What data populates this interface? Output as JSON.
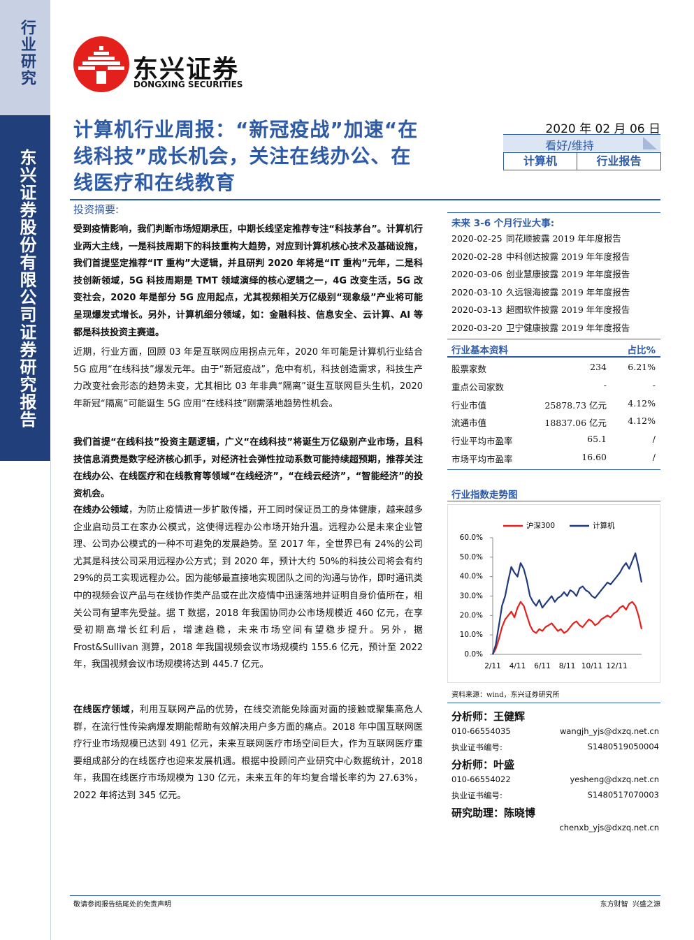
{
  "sidebar": {
    "category": "行业研究",
    "company": "东兴证券股份有限公司证券研究报告"
  },
  "header": {
    "logo_name": "东兴证券",
    "logo_english": "DONGXING SECURITIES",
    "title": "计算机行业周报：“新冠疫战”加速“在线科技”成长机会，关注在线办公、在线医疗和在线教育",
    "date": "2020 年 02 月 06 日",
    "rating": "看好/维持",
    "industry": "计算机",
    "report_type": "行业报告"
  },
  "summary": {
    "heading": "投资摘要:",
    "paragraphs": [
      {
        "bold": true,
        "text": "受到疫情影响，我们判断市场短期承压，中期长线坚定推荐专注“科技茅台”。计算机行业两大主线，一是科技周期下的科技重构大趋势，对应到计算机核心技术及基础设施，我们首提坚定推荐“IT 重构”大逻辑，并且研判 2020 年将是“IT 重构”元年，二是科技创新领域，5G 科技周期是 TMT 领域演绎的核心逻辑之一，4G 改变生活，5G 改变社会，2020 年是部分 5G 应用起点，尤其视频相关万亿级别“现象级”产业将可能呈现爆发式增长。另外，计算机细分领域，如：金融科技、信息安全、云计算、AI 等都是科技投资主赛道。"
      },
      {
        "bold": false,
        "text": "近期，行业方面，回顾 03 年是互联网应用拐点元年，2020 年可能是计算机行业结合 5G 应用“在线科技”爆发元年。由于“新冠疫战”，危中有机，科技创造需求，科技生产力改变社会形态的趋势未变，尤其相比 03 年非典“隔离”诞生互联网巨头生机，2020 年新冠“隔离”可能诞生 5G 应用“在线科技”刚需落地趋势性机会。"
      },
      {
        "bold": true,
        "text": "我们首提“在线科技”投资主题逻辑，广义“在线科技”将诞生万亿级别产业市场，且科技信息消费是数字经济核心抓手，对经济社会弹性拉动系数可能持续超预期，推荐关注在线办公、在线医疗和在线教育等领域“在线经济”，“在线云经济”，“智能经济”的投资机会。"
      },
      {
        "bold": false,
        "lead": "在线办公领域",
        "text": "，为防止疫情进一步扩散传播，开工同时保证员工的身体健康，越来越多企业启动员工在家办公模式，这使得远程办公市场开始升温。远程办公是未来企业管理、公司办公模式的一种不可避免的发展趋势。至 2017 年，全世界已有 24%的公司尤其是科技公司采用远程办公方式；到 2020 年，预计大约 50%的科技公司将会有约 29%的员工实现远程办公。因为能够最直接地实现团队之间的沟通与协作，即时通讯类中的视频会议产品与在线协作类产品或在此次疫情中迅速落地并证明自身价值所在，相关公司有望率先受益。据 T 数据，2018 年我国协同办公市场规模近 460 亿元，在享受初期高增长红利后，增速趋稳，未来市场空间有望稳步提升。另外，据 Frost&Sullivan 测算，2018 年我国视频会议市场规模约 155.6 亿元，预计至 2022 年，我国视频会议市场规模将达到 445.7 亿元。"
      },
      {
        "bold": false,
        "lead": "在线医疗领域",
        "text": "，利用互联网产品的优势，在线交流能免除面对面的接触或聚集高危人群，在流行性传染病爆发期能帮助有效解决用户多方面的痛点。2018 年中国互联网医疗行业市场规模已达到 491 亿元，未来互联网医疗市场空间巨大，作为互联网医疗重要组成部分的在线医疗也迎来发展机遇。根据中投顾问产业研究中心数据统计，2018 年，我国在线医疗市场规模为 130 亿元，未来五年的年均复合增长率约为 27.63%，2022 年将达到 345 亿元。"
      }
    ]
  },
  "events": {
    "heading": "未来 3-6 个月行业大事:",
    "items": [
      {
        "date": "2020-02-25",
        "text": "同花顺披露 2019 年年度报告"
      },
      {
        "date": "2020-02-28",
        "text": "中科创达披露 2019 年年度报告"
      },
      {
        "date": "2020-03-06",
        "text": "创业慧康披露 2019 年年度报告"
      },
      {
        "date": "2020-03-10",
        "text": "久远银海披露 2019 年年度报告"
      },
      {
        "date": "2020-03-13",
        "text": "超图软件披露 2019 年年度报告"
      },
      {
        "date": "2020-03-20",
        "text": "卫宁健康披露 2019 年年度报告"
      }
    ]
  },
  "basics": {
    "heading": "行业基本资料",
    "column": "占比%",
    "rows": [
      [
        "股票家数",
        "234",
        "6.21%"
      ],
      [
        "重点公司家数",
        "-",
        "-"
      ],
      [
        "行业市值",
        "25878.73 亿元",
        "4.12%"
      ],
      [
        "流通市值",
        "18837.06 亿元",
        "4.12%"
      ],
      [
        "行业平均市盈率",
        "65.1",
        "/"
      ],
      [
        "市场平均市盈率",
        "16.60",
        "/"
      ]
    ]
  },
  "chart_data": {
    "type": "line",
    "title": "行业指数走势图",
    "source": "资料来源：wind，东兴证券研究所",
    "categories": [
      "2/11",
      null,
      null,
      null,
      null,
      null,
      null,
      null,
      "4/11",
      null,
      null,
      null,
      null,
      null,
      null,
      null,
      "6/11",
      null,
      null,
      null,
      null,
      null,
      null,
      null,
      "8/11",
      null,
      null,
      null,
      null,
      null,
      null,
      null,
      "10/11",
      null,
      null,
      null,
      null,
      null,
      null,
      null,
      "12/11",
      null,
      null,
      null,
      null,
      null,
      null,
      null,
      null
    ],
    "series": [
      {
        "name": "沪深300",
        "color": "#e3201b",
        "values": [
          0,
          3,
          8,
          14,
          18,
          20,
          22,
          19,
          24,
          27,
          25,
          20,
          15,
          12,
          11,
          13,
          12,
          14,
          15,
          16,
          14,
          12,
          13,
          11,
          12,
          14,
          16,
          17,
          15,
          14,
          16,
          18,
          17,
          15,
          16,
          18,
          19,
          20,
          19,
          21,
          22,
          24,
          25,
          23,
          26,
          27,
          25,
          20,
          13
        ]
      },
      {
        "name": "计算机",
        "color": "#1f3a7d",
        "values": [
          0,
          5,
          15,
          25,
          30,
          38,
          45,
          42,
          40,
          47,
          44,
          38,
          30,
          27,
          25,
          28,
          24,
          26,
          28,
          30,
          27,
          29,
          30,
          32,
          30,
          33,
          32,
          30,
          34,
          35,
          33,
          32,
          30,
          29,
          31,
          33,
          35,
          37,
          36,
          38,
          40,
          42,
          45,
          47,
          44,
          48,
          52,
          45,
          37
        ]
      }
    ],
    "ylim": [
      0,
      60
    ],
    "yticks": [
      {
        "value": 0,
        "label": "0.0%"
      },
      {
        "value": 10,
        "label": "10.0%"
      },
      {
        "value": 20,
        "label": "20.0%"
      },
      {
        "value": 30,
        "label": "30.0%"
      },
      {
        "value": 40,
        "label": "40.0%"
      },
      {
        "value": 50,
        "label": "50.0%"
      },
      {
        "value": 60,
        "label": "60.0%"
      }
    ],
    "grid": false,
    "legend": "top"
  },
  "analysts": [
    {
      "name": "分析师：王健辉",
      "phone": "010-66554035",
      "email": "wangjh_yjs@dxzq.net.cn",
      "cert_label": "执业证书编号:",
      "cert": "S1480519050004"
    },
    {
      "name": "分析师：叶盛",
      "phone": "010-66554022",
      "email": "yesheng@dxzq.net.cn",
      "cert_label": "执业证书编号:",
      "cert": "S1480517070003"
    },
    {
      "name": "研究助理：陈晓博",
      "email": "chenxb_yjs@dxzq.net.cn"
    }
  ],
  "footer": {
    "left": "敬请参阅报告结尾处的免责声明",
    "right": "东方财智  兴盛之源"
  }
}
